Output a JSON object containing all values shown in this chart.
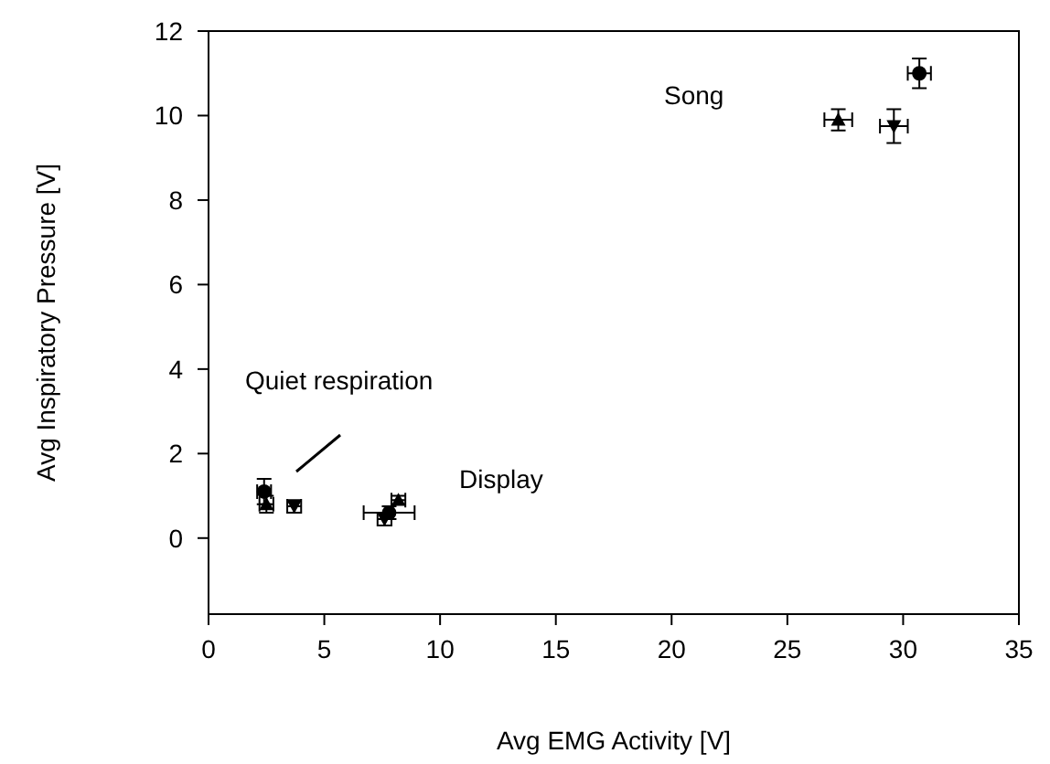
{
  "chart_data": {
    "type": "scatter",
    "xlabel": "Avg EMG Activity [V]",
    "ylabel": "Avg Inspiratory Pressure [V]",
    "annotations": [
      "Song",
      "Quiet respiration",
      "Display"
    ],
    "xlim": [
      0,
      35
    ],
    "xticks": [
      0,
      5,
      10,
      15,
      20,
      25,
      30,
      35
    ],
    "ylim": [
      -1.8,
      12
    ],
    "yticks": [
      0,
      2,
      4,
      6,
      8,
      10,
      12
    ],
    "grid": false,
    "series": [
      {
        "color": "#000000",
        "marker": "circle",
        "x": [
          2.4,
          7.8,
          30.7
        ],
        "values": [
          1.1,
          0.6,
          11.0
        ],
        "errors": [
          0.3,
          0.15,
          0.35
        ],
        "xerrors": [
          0.3,
          1.1,
          0.5
        ]
      },
      {
        "color": "#000000",
        "x": [
          2.5,
          8.2,
          27.2
        ],
        "values": [
          0.8,
          0.9,
          9.9
        ],
        "errors": [
          0.2,
          0.1,
          0.25
        ],
        "xerrors": [
          0.3,
          0.3,
          0.6
        ]
      },
      {
        "color": "#000000",
        "x": [
          3.7,
          7.6,
          29.6
        ],
        "values": [
          0.75,
          0.45,
          9.75
        ],
        "errors": [
          0.15,
          0.15,
          0.4
        ],
        "xerrors": [
          0.3,
          0.3,
          0.6
        ]
      }
    ]
  }
}
